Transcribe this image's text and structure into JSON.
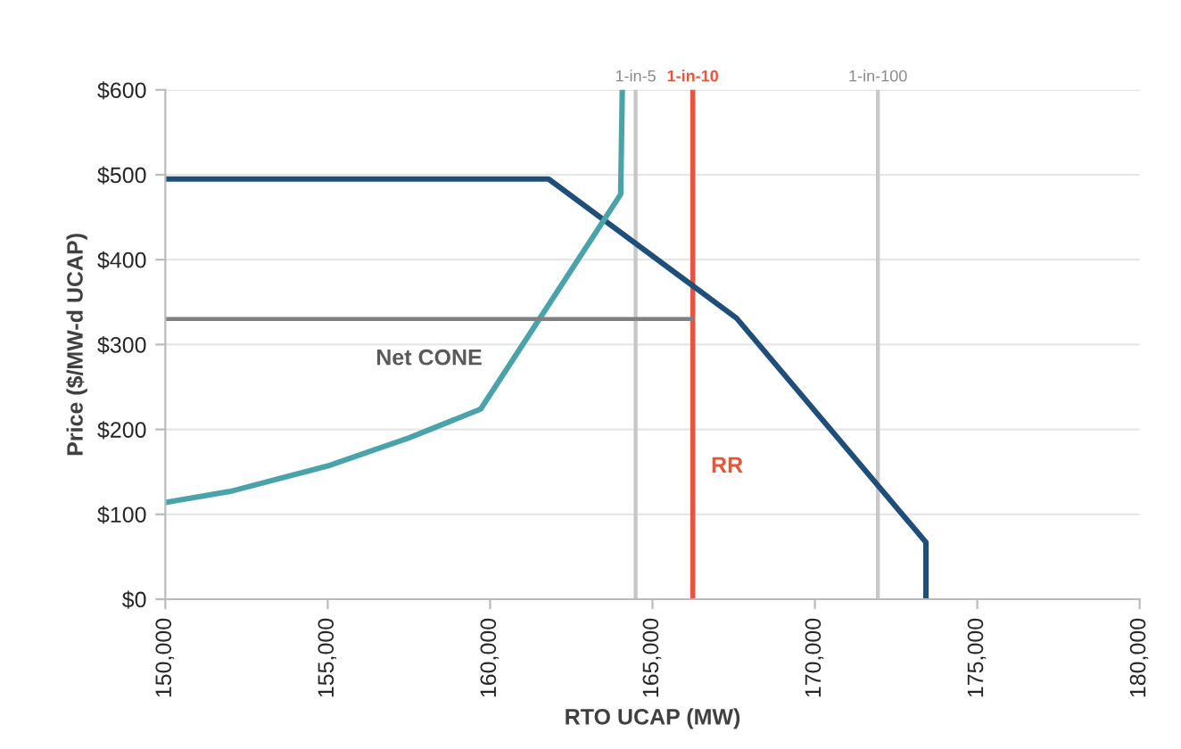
{
  "chart_data": {
    "type": "line",
    "xlabel": "RTO UCAP (MW)",
    "ylabel": "Price ($/MW-d UCAP)",
    "xlim": [
      150000,
      180000
    ],
    "xticks": [
      {
        "value": 150000,
        "label": "150,000"
      },
      {
        "value": 155000,
        "label": "155,000"
      },
      {
        "value": 160000,
        "label": "160,000"
      },
      {
        "value": 165000,
        "label": "165,000"
      },
      {
        "value": 170000,
        "label": "170,000"
      },
      {
        "value": 175000,
        "label": "175,000"
      },
      {
        "value": 180000,
        "label": "180,000"
      }
    ],
    "ylim": [
      0,
      600
    ],
    "yticks": [
      {
        "value": 0,
        "label": "$0"
      },
      {
        "value": 100,
        "label": "$100"
      },
      {
        "value": 200,
        "label": "$200"
      },
      {
        "value": 300,
        "label": "$300"
      },
      {
        "value": 400,
        "label": "$400"
      },
      {
        "value": 500,
        "label": "$500"
      },
      {
        "value": 600,
        "label": "$600"
      }
    ],
    "grid": "y",
    "legend": false,
    "marker": "none",
    "line_style": "solid",
    "series": [
      {
        "color": "#1f4e79",
        "x": [
          150000,
          161800,
          167590,
          173420,
          173420
        ],
        "values": [
          495,
          495,
          331,
          67,
          0
        ]
      },
      {
        "color": "#4aa3a8",
        "x": [
          150000,
          152000,
          155000,
          157500,
          159710,
          164020,
          164070
        ],
        "values": [
          114,
          127,
          157,
          190,
          224,
          477,
          600
        ]
      },
      {
        "name": "Net CONE",
        "color": "#808080",
        "x": [
          150000,
          166240
        ],
        "values": [
          330,
          330
        ]
      }
    ],
    "ref_lines": [
      {
        "axis": "x",
        "value": 164480,
        "label": "1-in-5",
        "color": "#c8c8c8"
      },
      {
        "axis": "x",
        "value": 166240,
        "label": "1-in-10",
        "color": "#e8553a"
      },
      {
        "axis": "x",
        "value": 171940,
        "label": "1-in-100",
        "color": "#c8c8c8"
      }
    ],
    "annotations": [
      "RR"
    ]
  }
}
